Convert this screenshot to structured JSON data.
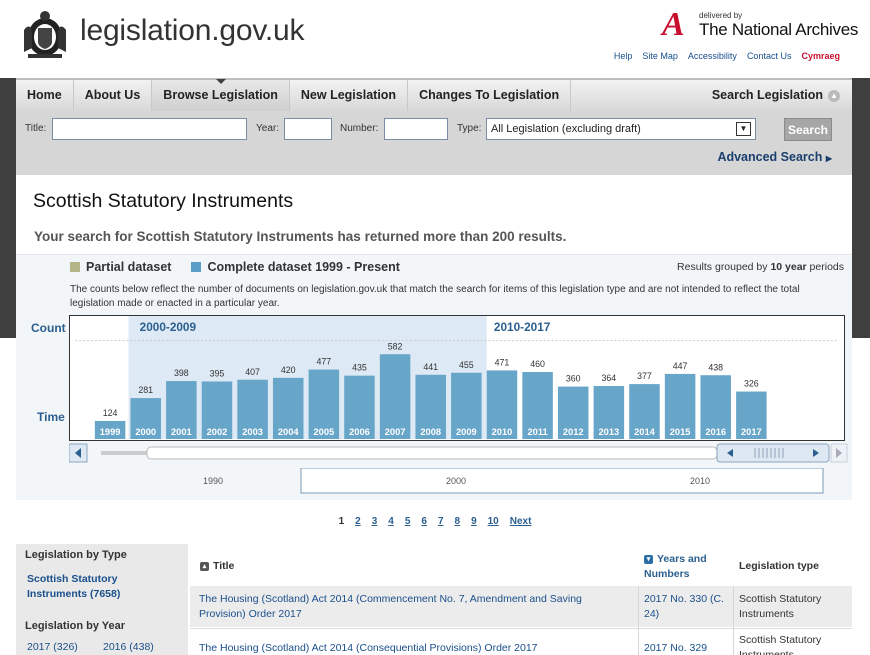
{
  "site": {
    "name": "legislation.gov.uk",
    "delivered_by": "delivered by",
    "partner": "The National Archives",
    "partner_mark": "A"
  },
  "utility_links": [
    "Help",
    "Site Map",
    "Accessibility",
    "Contact Us",
    "Cymraeg"
  ],
  "nav": {
    "items": [
      "Home",
      "About Us",
      "Browse Legislation",
      "New Legislation",
      "Changes To Legislation"
    ],
    "active": "Browse Legislation",
    "search": "Search Legislation"
  },
  "search_form": {
    "title_label": "Title:",
    "year_label": "Year:",
    "number_label": "Number:",
    "type_label": "Type:",
    "title_value": "",
    "year_value": "",
    "number_value": "",
    "type_value": "All Legislation (excluding draft)",
    "search_button": "Search",
    "advanced": "Advanced Search"
  },
  "page": {
    "title": "Scottish Statutory Instruments",
    "results_message": "Your search for Scottish Statutory Instruments has returned more than 200 results."
  },
  "timeline": {
    "legend_partial": "Partial dataset",
    "legend_complete": "Complete dataset 1999 - Present",
    "grouped_prefix": "Results grouped by ",
    "grouped_value": "10 year",
    "grouped_suffix": " periods",
    "note": "The counts below reflect the number of documents on legislation.gov.uk that match the search for items of this legislation type and are not intended to reflect the total legislation made or enacted in a particular year.",
    "count_label": "Count",
    "time_label": "Time",
    "decade_labels": [
      "1990",
      "2000",
      "2010"
    ],
    "colors": {
      "partial": "#b5b58a",
      "complete": "#5b9fc7",
      "bar": "#67a5c9"
    }
  },
  "chart_data": {
    "type": "bar",
    "groups": [
      "2000-2009",
      "2010-2017"
    ],
    "categories": [
      "1999",
      "2000",
      "2001",
      "2002",
      "2003",
      "2004",
      "2005",
      "2006",
      "2007",
      "2008",
      "2009",
      "2010",
      "2011",
      "2012",
      "2013",
      "2014",
      "2015",
      "2016",
      "2017"
    ],
    "values": [
      124,
      281,
      398,
      395,
      407,
      420,
      477,
      435,
      582,
      441,
      455,
      471,
      460,
      360,
      364,
      377,
      447,
      438,
      326
    ]
  },
  "pagination": {
    "pages": [
      "1",
      "2",
      "3",
      "4",
      "5",
      "6",
      "7",
      "8",
      "9",
      "10"
    ],
    "current": "1",
    "next": "Next"
  },
  "sidebar": {
    "by_type_heading": "Legislation by Type",
    "type_link": "Scottish Statutory Instruments (7658)",
    "by_year_heading": "Legislation by Year",
    "years": [
      "2017 (326)",
      "2016 (438)"
    ]
  },
  "results": {
    "headers": {
      "title": "Title",
      "years": "Years and Numbers",
      "type": "Legislation type"
    },
    "rows": [
      {
        "title": "The Housing (Scotland) Act 2014 (Commencement No. 7, Amendment and Saving Provision) Order 2017",
        "number": "2017 No. 330 (C. 24)",
        "type": "Scottish Statutory Instruments"
      },
      {
        "title": "The Housing (Scotland) Act 2014 (Consequential Provisions) Order 2017",
        "number": "2017 No. 329",
        "type": "Scottish Statutory Instruments"
      }
    ]
  }
}
